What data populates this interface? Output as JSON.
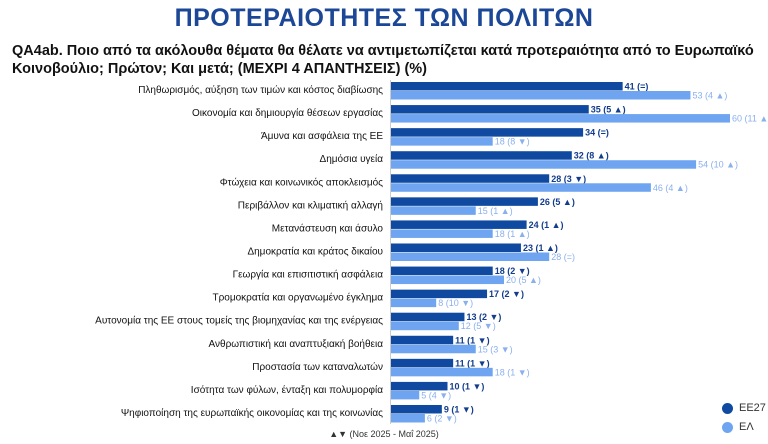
{
  "title": "ΠΡΟΤΕΡΑΙΟΤΗΤΕΣ ΤΩΝ ΠΟΛΙΤΩΝ",
  "question": "QA4ab. Ποιο από τα ακόλουθα θέματα θα θέλατε να αντιμετωπίζεται κατά προτεραιότητα από το Ευρωπαϊκό Κοινοβούλιο; Πρώτον; Και μετά; (ΜΕΧΡΙ 4 ΑΠΑΝΤΗΣΕΙΣ) (%)",
  "footnote": "▲▼ (Νοε 2025 - Μαΐ 2025)",
  "colors": {
    "EE27": "#0f4aa0",
    "EL": "#6fa5f0"
  },
  "chart_data": {
    "type": "bar",
    "orientation": "horizontal",
    "categories": [
      "Πληθωρισμός, αύξηση των τιμών και κόστος διαβίωσης",
      "Οικονομία και δημιουργία θέσεων εργασίας",
      "Άμυνα και ασφάλεια της ΕΕ",
      "Δημόσια υγεία",
      "Φτώχεια και κοινωνικός αποκλεισμός",
      "Περιβάλλον και κλιματική αλλαγή",
      "Μετανάστευση και άσυλο",
      "Δημοκρατία και κράτος δικαίου",
      "Γεωργία και επισιτιστική ασφάλεια",
      "Τρομοκρατία και οργανωμένο έγκλημα",
      "Αυτονομία της ΕΕ στους τομείς της βιομηχανίας και της ενέργειας",
      "Ανθρωπιστική και αναπτυξιακή βοήθεια",
      "Προστασία των καταναλωτών",
      "Ισότητα των φύλων, ένταξη και πολυμορφία",
      "Ψηφιοποίηση της ευρωπαϊκής οικονομίας και της κοινωνίας"
    ],
    "series": [
      {
        "name": "ΕΕ27",
        "values": [
          41,
          35,
          34,
          32,
          28,
          26,
          24,
          23,
          18,
          17,
          13,
          11,
          11,
          10,
          9
        ],
        "labels": [
          "41 (=)",
          "35 (5 ▲)",
          "34 (=)",
          "32 (8 ▲)",
          "28 (3 ▼)",
          "26 (5 ▲)",
          "24 (1 ▲)",
          "23 (1 ▲)",
          "18 (2 ▼)",
          "17 (2 ▼)",
          "13 (2 ▼)",
          "11 (1 ▼)",
          "11 (1 ▼)",
          "10 (1 ▼)",
          "9 (1 ▼)"
        ]
      },
      {
        "name": "ΕΛ",
        "values": [
          53,
          60,
          18,
          54,
          46,
          15,
          18,
          28,
          20,
          8,
          12,
          15,
          18,
          5,
          6
        ],
        "labels": [
          "53 (4 ▲)",
          "60 (11 ▲)",
          "18 (8 ▼)",
          "54 (10 ▲)",
          "46 (4 ▲)",
          "15 (1 ▲)",
          "18 (1 ▲)",
          "28 (=)",
          "20 (5 ▲)",
          "8 (10 ▼)",
          "12 (5 ▼)",
          "15 (3 ▼)",
          "18 (1 ▼)",
          "5 (4 ▼)",
          "6 (2 ▼)"
        ]
      }
    ],
    "xlim": [
      0,
      64
    ],
    "legend": "bottom-right"
  }
}
